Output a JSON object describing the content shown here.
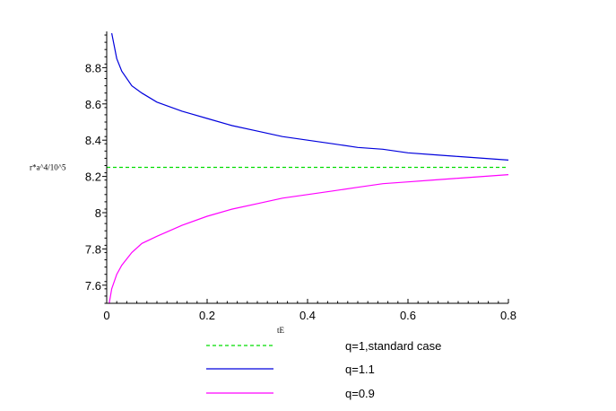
{
  "chart_data": {
    "type": "line",
    "title": "",
    "xlabel": "tE",
    "ylabel": "r*a^4/10^5",
    "xlim": [
      0,
      0.8
    ],
    "ylim": [
      7.5,
      9.0
    ],
    "x_ticks": [
      {
        "value": 0,
        "label": "0"
      },
      {
        "value": 0.2,
        "label": "0.2"
      },
      {
        "value": 0.4,
        "label": "0.4"
      },
      {
        "value": 0.6,
        "label": "0.6"
      },
      {
        "value": 0.8,
        "label": "0.8"
      }
    ],
    "y_ticks": [
      {
        "value": 7.6,
        "label": "7.6"
      },
      {
        "value": 7.8,
        "label": "7.8"
      },
      {
        "value": 8.0,
        "label": "8"
      },
      {
        "value": 8.2,
        "label": "8.2"
      },
      {
        "value": 8.4,
        "label": "8.4"
      },
      {
        "value": 8.6,
        "label": "8.6"
      },
      {
        "value": 8.8,
        "label": "8.8"
      }
    ],
    "grid": false,
    "legend_position": "bottom",
    "series": [
      {
        "name": "q=1,standard case",
        "color": "#00dd00",
        "dash": true,
        "x": [
          0,
          0.8
        ],
        "y": [
          8.25,
          8.25
        ]
      },
      {
        "name": "q=1.1",
        "color": "#0000dd",
        "dash": false,
        "x": [
          0.01,
          0.02,
          0.03,
          0.05,
          0.07,
          0.1,
          0.15,
          0.2,
          0.25,
          0.3,
          0.35,
          0.4,
          0.45,
          0.5,
          0.55,
          0.6,
          0.65,
          0.7,
          0.75,
          0.8
        ],
        "y": [
          8.99,
          8.85,
          8.78,
          8.7,
          8.66,
          8.61,
          8.56,
          8.52,
          8.48,
          8.45,
          8.42,
          8.4,
          8.38,
          8.36,
          8.35,
          8.33,
          8.32,
          8.31,
          8.3,
          8.29
        ]
      },
      {
        "name": "q=0.9",
        "color": "#ff00ff",
        "dash": false,
        "x": [
          0.005,
          0.01,
          0.02,
          0.03,
          0.05,
          0.07,
          0.1,
          0.15,
          0.2,
          0.25,
          0.3,
          0.35,
          0.4,
          0.45,
          0.5,
          0.55,
          0.6,
          0.65,
          0.7,
          0.75,
          0.8
        ],
        "y": [
          7.5,
          7.58,
          7.66,
          7.71,
          7.78,
          7.83,
          7.87,
          7.93,
          7.98,
          8.02,
          8.05,
          8.08,
          8.1,
          8.12,
          8.14,
          8.16,
          8.17,
          8.18,
          8.19,
          8.2,
          8.21
        ]
      }
    ]
  }
}
